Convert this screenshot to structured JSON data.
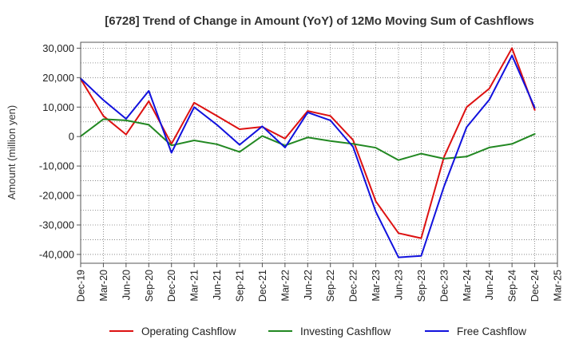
{
  "chart_data": {
    "type": "line",
    "title": "[6728]  Trend of Change in Amount (YoY) of 12Mo Moving Sum of Cashflows",
    "xlabel": "",
    "ylabel": "Amount (million yen)",
    "ylim": [
      -43000,
      32000
    ],
    "yticks": [
      30000,
      20000,
      10000,
      0,
      -10000,
      -20000,
      -30000,
      -40000
    ],
    "ytick_labels": [
      "30,000",
      "20,000",
      "10,000",
      "0",
      "-10,000",
      "-20,000",
      "-30,000",
      "-40,000"
    ],
    "categories": [
      "Dec-19",
      "Mar-20",
      "Jun-20",
      "Sep-20",
      "Dec-20",
      "Mar-21",
      "Jun-21",
      "Sep-21",
      "Dec-21",
      "Mar-22",
      "Jun-22",
      "Sep-22",
      "Dec-22",
      "Mar-23",
      "Jun-23",
      "Sep-23",
      "Dec-23",
      "Mar-24",
      "Jun-24",
      "Sep-24",
      "Dec-24",
      "Mar-25"
    ],
    "grid": true,
    "legend_position": "bottom",
    "series": [
      {
        "name": "Operating Cashflow",
        "color": "#dd1111",
        "values": [
          19500,
          7000,
          700,
          12000,
          -2500,
          11500,
          7000,
          2500,
          3300,
          -700,
          8700,
          7000,
          -1200,
          -22000,
          -32800,
          -34500,
          -7000,
          10000,
          16300,
          30000,
          9000,
          null
        ]
      },
      {
        "name": "Investing Cashflow",
        "color": "#228822",
        "values": [
          100,
          5900,
          5500,
          4000,
          -3000,
          -1300,
          -2600,
          -5200,
          200,
          -3000,
          -300,
          -1500,
          -2500,
          -3800,
          -8000,
          -5800,
          -7500,
          -6800,
          -3700,
          -2500,
          900,
          null
        ]
      },
      {
        "name": "Free Cashflow",
        "color": "#1111dd",
        "values": [
          19700,
          12400,
          6000,
          15500,
          -5500,
          10000,
          4000,
          -2800,
          3500,
          -3700,
          8200,
          5500,
          -3500,
          -25500,
          -41000,
          -40500,
          -17000,
          3200,
          12500,
          27500,
          9800,
          null
        ]
      }
    ]
  }
}
